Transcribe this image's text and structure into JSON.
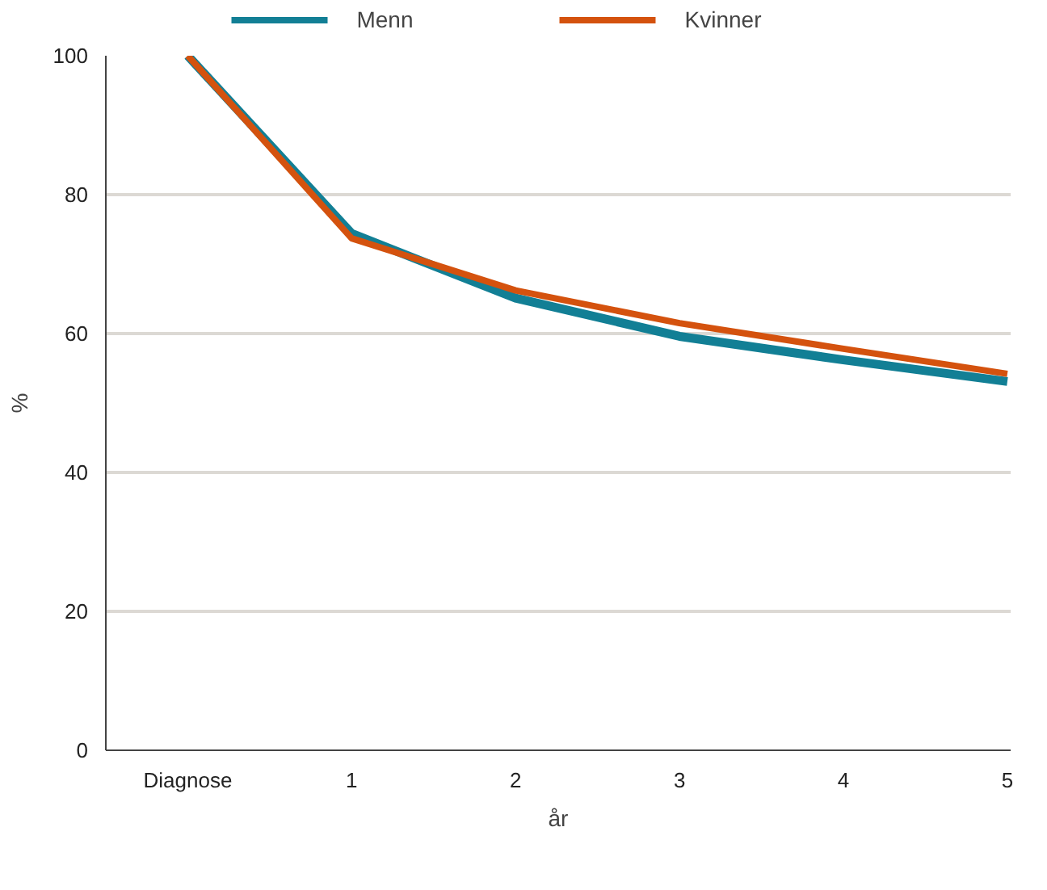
{
  "chart_data": {
    "type": "line",
    "xlabel": "år",
    "ylabel": "%",
    "categories": [
      "Diagnose",
      "1",
      "2",
      "3",
      "4",
      "5"
    ],
    "series": [
      {
        "name": "Menn",
        "color": "#127f95",
        "values": [
          100,
          74.4,
          65.1,
          59.6,
          56.2,
          53.1
        ]
      },
      {
        "name": "Kvinner",
        "color": "#d4520e",
        "values": [
          100,
          73.7,
          66.2,
          61.5,
          57.8,
          54.2
        ]
      }
    ],
    "ylim": [
      0,
      100
    ],
    "yticks": [
      0,
      20,
      40,
      60,
      80,
      100
    ],
    "grid": "y",
    "legend": "top",
    "marker": "none",
    "line_style": "solid"
  }
}
